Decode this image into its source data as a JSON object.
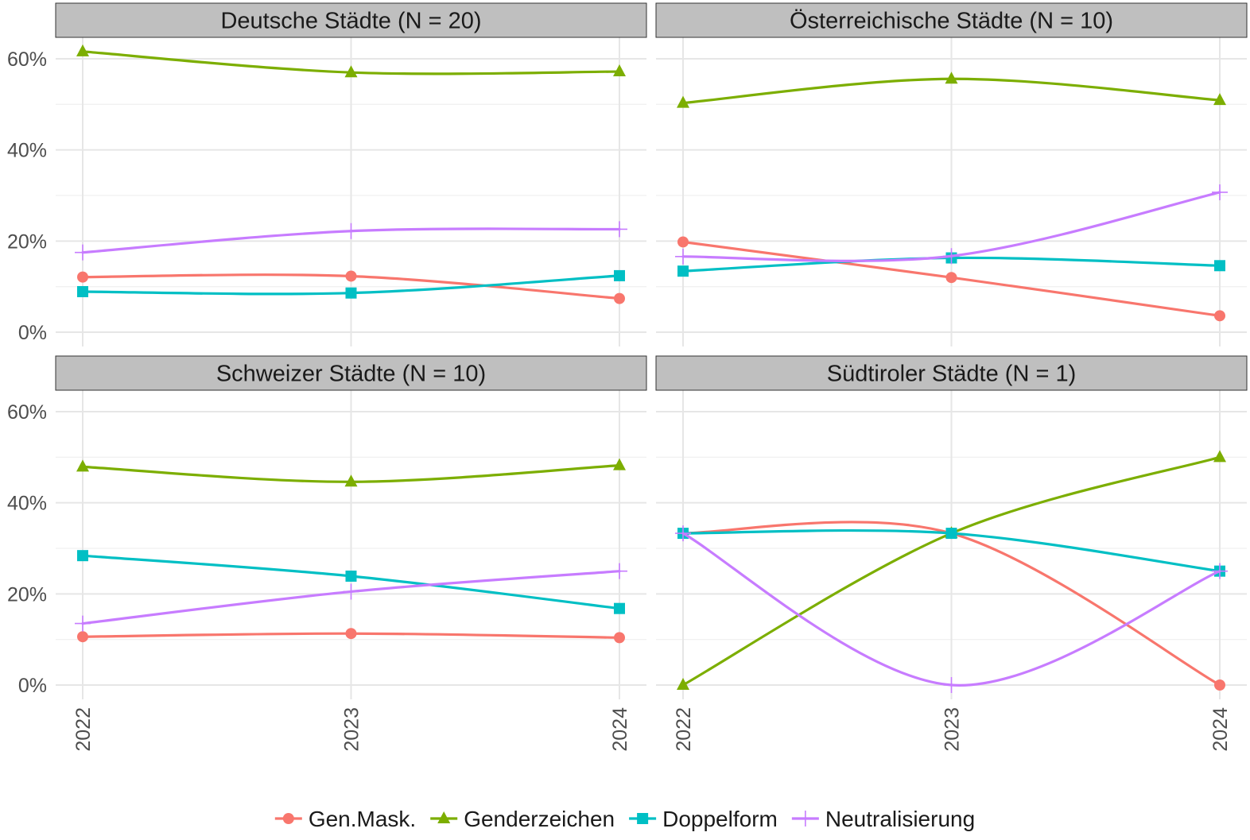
{
  "chart_data": {
    "type": "line",
    "x": [
      "2022",
      "2023",
      "2024"
    ],
    "y_ticks": [
      "0%",
      "20%",
      "40%",
      "60%"
    ],
    "ylim": [
      0,
      65
    ],
    "y_tick_values": [
      0,
      20,
      40,
      60
    ],
    "grid": true,
    "legend_position": "bottom",
    "series_styles": [
      {
        "name": "Gen.Mask.",
        "color": "#F8766D",
        "marker": "circle"
      },
      {
        "name": "Genderzeichen",
        "color": "#7CAE00",
        "marker": "triangle"
      },
      {
        "name": "Doppelform",
        "color": "#00BFC4",
        "marker": "square"
      },
      {
        "name": "Neutralisierung",
        "color": "#C77CFF",
        "marker": "plus"
      }
    ],
    "panels": [
      {
        "title": "Deutsche Städte (N = 20)",
        "series": [
          {
            "name": "Gen.Mask.",
            "values": [
              12.1,
              12.3,
              7.4
            ]
          },
          {
            "name": "Genderzeichen",
            "values": [
              61.6,
              57.0,
              57.2
            ]
          },
          {
            "name": "Doppelform",
            "values": [
              8.9,
              8.6,
              12.4
            ]
          },
          {
            "name": "Neutralisierung",
            "values": [
              17.5,
              22.2,
              22.6
            ]
          }
        ]
      },
      {
        "title": "Österreichische Städte (N = 10)",
        "series": [
          {
            "name": "Gen.Mask.",
            "values": [
              19.8,
              12.0,
              3.6
            ]
          },
          {
            "name": "Genderzeichen",
            "values": [
              50.3,
              55.6,
              50.9
            ]
          },
          {
            "name": "Doppelform",
            "values": [
              13.4,
              16.3,
              14.6
            ]
          },
          {
            "name": "Neutralisierung",
            "values": [
              16.6,
              16.7,
              30.7
            ]
          }
        ]
      },
      {
        "title": "Schweizer Städte (N = 10)",
        "series": [
          {
            "name": "Gen.Mask.",
            "values": [
              10.6,
              11.3,
              10.4
            ]
          },
          {
            "name": "Genderzeichen",
            "values": [
              47.9,
              44.6,
              48.2
            ]
          },
          {
            "name": "Doppelform",
            "values": [
              28.4,
              23.9,
              16.8
            ]
          },
          {
            "name": "Neutralisierung",
            "values": [
              13.5,
              20.5,
              25.0
            ]
          }
        ]
      },
      {
        "title": "Südtiroler Städte (N = 1)",
        "series": [
          {
            "name": "Gen.Mask.",
            "values": [
              33.3,
              33.3,
              0.0
            ]
          },
          {
            "name": "Genderzeichen",
            "values": [
              0.0,
              33.3,
              50.0
            ]
          },
          {
            "name": "Doppelform",
            "values": [
              33.3,
              33.3,
              25.0
            ]
          },
          {
            "name": "Neutralisierung",
            "values": [
              33.3,
              0.0,
              25.0
            ]
          }
        ]
      }
    ]
  }
}
